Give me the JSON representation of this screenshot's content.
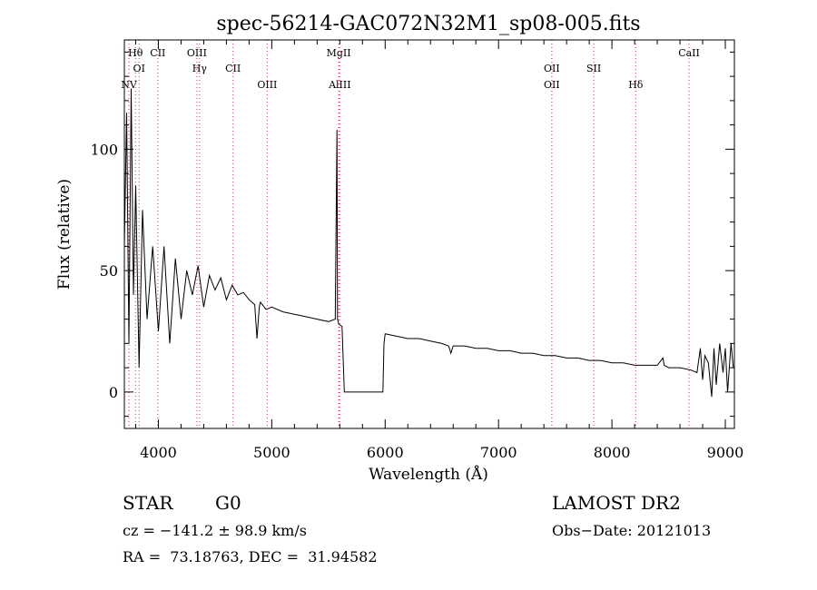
{
  "chart_data": {
    "type": "line",
    "title": "spec-56214-GAC072N32M1_sp08-005.fits",
    "xlabel": "Wavelength (Å)",
    "ylabel": "Flux (relative)",
    "xlim": [
      3700,
      9080
    ],
    "ylim": [
      -15,
      145
    ],
    "x_ticks": [
      4000,
      5000,
      6000,
      7000,
      8000,
      9000
    ],
    "y_ticks": [
      0,
      50,
      100
    ],
    "grid": false,
    "series": [
      {
        "x": [
          3700,
          3720,
          3740,
          3760,
          3780,
          3800,
          3830,
          3860,
          3900,
          3950,
          4000,
          4050,
          4100,
          4150,
          4200,
          4250,
          4300,
          4350,
          4400,
          4450,
          4500,
          4550,
          4600,
          4650,
          4700,
          4750,
          4800,
          4850,
          4870,
          4890,
          4900,
          4950,
          5000,
          5100,
          5200,
          5300,
          5400,
          5500,
          5560,
          5575,
          5580,
          5590,
          5620,
          5640,
          5650,
          5660,
          5700,
          5800,
          5900,
          5980,
          5990,
          6000,
          6100,
          6200,
          6300,
          6400,
          6500,
          6560,
          6580,
          6600,
          6700,
          6800,
          6900,
          7000,
          7100,
          7200,
          7300,
          7400,
          7500,
          7600,
          7700,
          7800,
          7900,
          8000,
          8100,
          8200,
          8300,
          8400,
          8450,
          8460,
          8500,
          8600,
          8700,
          8750,
          8780,
          8800,
          8820,
          8850,
          8880,
          8900,
          8920,
          8950,
          8980,
          9000,
          9020,
          9050,
          9070
        ],
        "y": [
          60,
          115,
          20,
          125,
          40,
          85,
          10,
          75,
          30,
          60,
          25,
          60,
          20,
          55,
          30,
          50,
          40,
          52,
          35,
          48,
          42,
          47,
          38,
          44,
          40,
          41,
          38,
          36,
          22,
          35,
          37,
          34,
          35,
          33,
          32,
          31,
          30,
          29,
          30,
          108,
          30,
          28,
          27,
          0,
          0,
          0,
          0,
          0,
          0,
          0,
          20,
          24,
          23,
          22,
          22,
          21,
          20,
          19,
          16,
          19,
          19,
          18,
          18,
          17,
          17,
          16,
          16,
          15,
          15,
          14,
          14,
          13,
          13,
          12,
          12,
          11,
          11,
          11,
          14,
          11,
          10,
          10,
          9,
          8,
          18,
          5,
          15,
          12,
          -2,
          18,
          3,
          20,
          8,
          18,
          0,
          20,
          10
        ]
      }
    ],
    "line_markers": [
      {
        "label": "NV",
        "x": 3740,
        "row": 3
      },
      {
        "label": "Hθ",
        "x": 3798,
        "row": 1
      },
      {
        "label": "OI",
        "x": 3830,
        "row": 2
      },
      {
        "label": "CII",
        "x": 3995,
        "row": 1
      },
      {
        "label": "OIII",
        "x": 4340,
        "row": 1
      },
      {
        "label": "Hγ",
        "x": 4363,
        "row": 2
      },
      {
        "label": "CII",
        "x": 4658,
        "row": 2
      },
      {
        "label": "OIII",
        "x": 4960,
        "row": 3
      },
      {
        "label": "MgII",
        "x": 5590,
        "row": 1
      },
      {
        "label": "AlIII",
        "x": 5600,
        "row": 3
      },
      {
        "label": "OII",
        "x": 7470,
        "row": 2
      },
      {
        "label": "OII",
        "x": 7470,
        "row": 3
      },
      {
        "label": "SII",
        "x": 7840,
        "row": 2
      },
      {
        "label": "Hδ",
        "x": 8210,
        "row": 3
      },
      {
        "label": "CaII",
        "x": 8680,
        "row": 1
      }
    ]
  },
  "info": {
    "class": "STAR",
    "subclass": "G0",
    "survey": "LAMOST DR2",
    "cz": "cz = −141.2 ± 98.9 km/s",
    "obs_date": "Obs−Date: 20121013",
    "coords": "RA =  73.18763, DEC =  31.94582"
  }
}
